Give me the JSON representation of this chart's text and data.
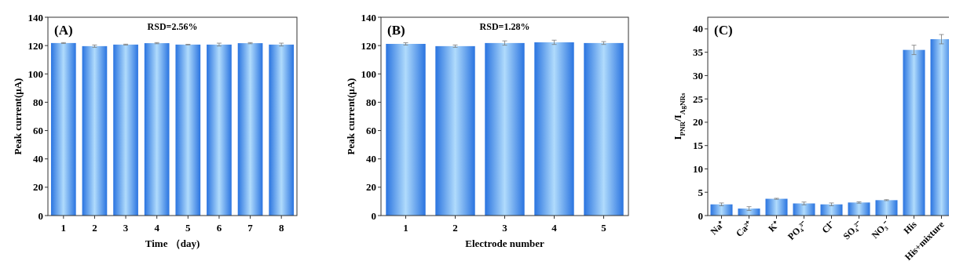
{
  "chart_data": [
    {
      "type": "bar",
      "title": "(A)",
      "annotations": [
        "RSD=2.56%"
      ],
      "xlabel": "Time （day)",
      "ylabel": "Peak current(μA)",
      "categories": [
        "1",
        "2",
        "3",
        "4",
        "5",
        "6",
        "7",
        "8"
      ],
      "values": [
        121.8,
        119.6,
        120.7,
        121.7,
        120.7,
        120.7,
        121.7,
        120.7
      ],
      "errors": [
        0.3,
        0.8,
        0.3,
        0.4,
        0.2,
        1,
        0.4,
        1
      ],
      "color": "#2a74e0",
      "ylim": [
        0,
        140
      ],
      "yticks": [
        0,
        20,
        40,
        60,
        80,
        100,
        120,
        140
      ],
      "grid": false
    },
    {
      "type": "bar",
      "title": "(B)",
      "annotations": [
        "RSD=1.28%"
      ],
      "xlabel": "Electrode number",
      "ylabel": "Peak current(μA)",
      "categories": [
        "1",
        "2",
        "3",
        "4",
        "5"
      ],
      "values": [
        121.2,
        119.6,
        121.8,
        122.3,
        121.8
      ],
      "errors": [
        0.8,
        0.8,
        1.5,
        1.5,
        1
      ],
      "color": "#2a74e0",
      "ylim": [
        0,
        140
      ],
      "yticks": [
        0,
        20,
        40,
        60,
        80,
        100,
        120,
        140
      ],
      "grid": false
    },
    {
      "type": "bar",
      "title": "(C)",
      "ylabel": "I$_{PNR}$/I$_{AgNRs}$",
      "categories": [
        "Na⁺",
        "Ca²⁺",
        "K⁺",
        "PO₄³⁻",
        "Cl⁻",
        "SO₄²⁻",
        "NO₃⁻",
        "His",
        "His+mixture"
      ],
      "values": [
        2.4,
        1.5,
        3.6,
        2.6,
        2.4,
        2.8,
        3.3,
        35.5,
        37.8
      ],
      "errors": [
        0.3,
        0.4,
        0.1,
        0.3,
        0.3,
        0.15,
        0.1,
        1,
        1
      ],
      "color": "#2a74e0",
      "ylim": [
        0,
        42.5
      ],
      "yticks": [
        0,
        5,
        10,
        15,
        20,
        25,
        30,
        35,
        40
      ],
      "grid": false
    }
  ]
}
